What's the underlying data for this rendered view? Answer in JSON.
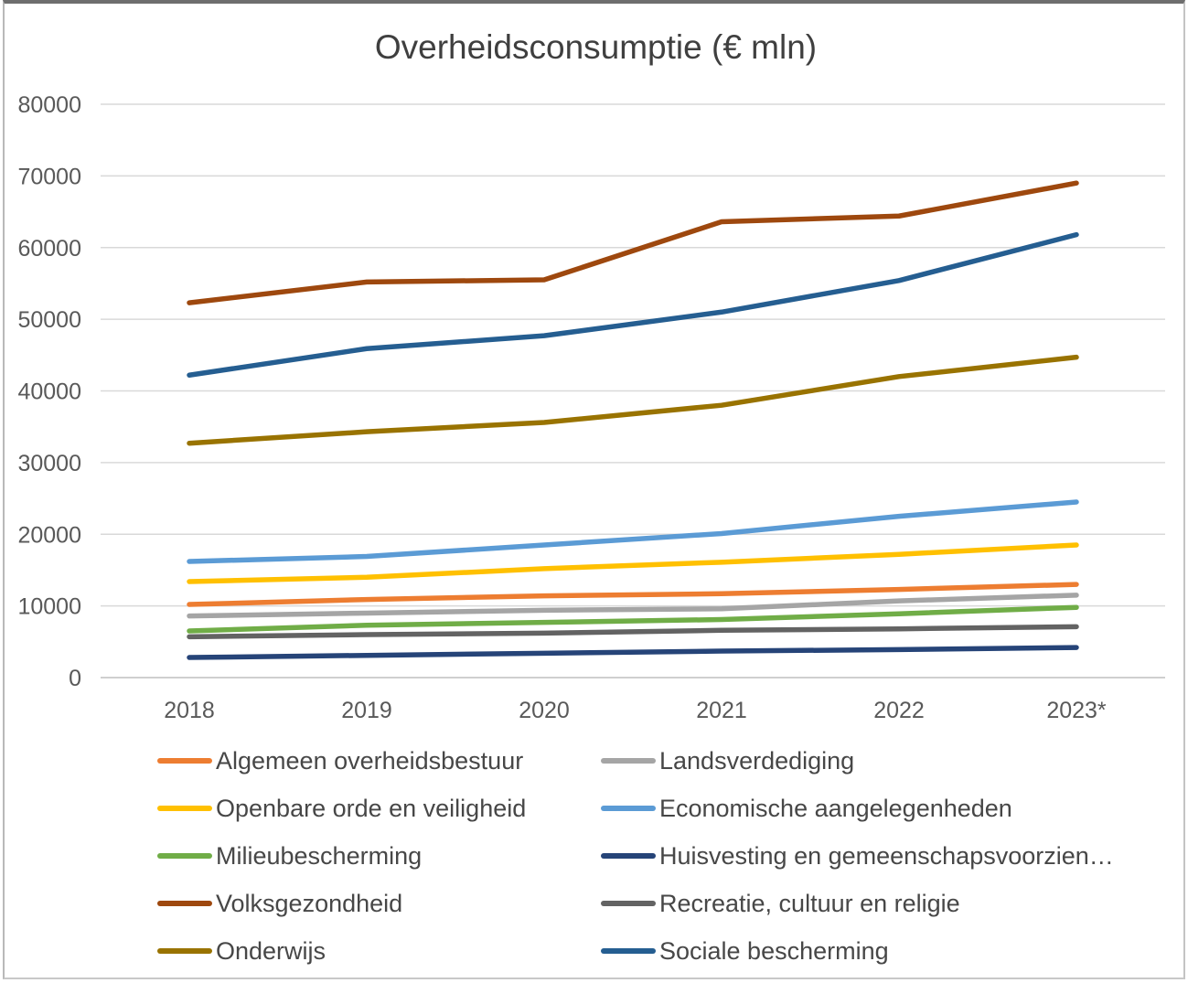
{
  "chart_data": {
    "type": "line",
    "title": "Overheidsconsumptie (€ mln)",
    "categories": [
      "2018",
      "2019",
      "2020",
      "2021",
      "2022",
      "2023*"
    ],
    "xlabel": "",
    "ylabel": "",
    "ylim": [
      0,
      80000
    ],
    "y_ticks": [
      0,
      10000,
      20000,
      30000,
      40000,
      50000,
      60000,
      70000,
      80000
    ],
    "grid": true,
    "legend_position": "bottom-two-columns",
    "gridline_color": "#d9d9d9",
    "axis_line_color": "#bfbfbf",
    "series": [
      {
        "name": "Algemeen overheidsbestuur",
        "color": "#ED7D31",
        "values": [
          10200,
          10900,
          11400,
          11700,
          12300,
          13000
        ]
      },
      {
        "name": "Landsverdediging",
        "color": "#A5A5A5",
        "values": [
          8600,
          9000,
          9400,
          9600,
          10700,
          11500
        ]
      },
      {
        "name": "Openbare orde en veiligheid",
        "color": "#FFC000",
        "values": [
          13400,
          14000,
          15200,
          16100,
          17200,
          18500
        ]
      },
      {
        "name": "Economische aangelegenheden",
        "color": "#5B9BD5",
        "values": [
          16200,
          16900,
          18500,
          20100,
          22500,
          24500
        ]
      },
      {
        "name": "Milieubescherming",
        "color": "#70AD47",
        "values": [
          6500,
          7300,
          7700,
          8100,
          8900,
          9800
        ]
      },
      {
        "name": "Huisvesting en gemeenschapsvoorzien…",
        "color": "#264478",
        "values": [
          2800,
          3100,
          3400,
          3700,
          3900,
          4200
        ]
      },
      {
        "name": "Volksgezondheid",
        "color": "#9E480E",
        "values": [
          52300,
          55200,
          55500,
          63600,
          64400,
          69000
        ]
      },
      {
        "name": "Recreatie, cultuur en religie",
        "color": "#636363",
        "values": [
          5700,
          6000,
          6200,
          6600,
          6800,
          7100
        ]
      },
      {
        "name": "Onderwijs",
        "color": "#997300",
        "values": [
          32700,
          34300,
          35600,
          38000,
          42000,
          44700
        ]
      },
      {
        "name": "Sociale bescherming",
        "color": "#255E91",
        "values": [
          42200,
          45900,
          47700,
          51000,
          55400,
          61800
        ]
      }
    ]
  }
}
